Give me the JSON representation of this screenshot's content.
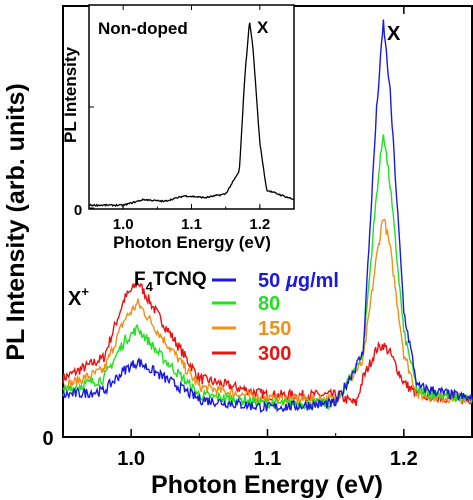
{
  "chart_data": [
    {
      "type": "line",
      "xlabel": "Photon Energy (eV)",
      "ylabel": "PL Intensity (arb. units)",
      "xlim": [
        0.95,
        1.25
      ],
      "x_ticks": [
        1.0,
        1.1,
        1.2
      ],
      "x_tick_labels": [
        "1.0",
        "1.1",
        "1.2"
      ],
      "y_ticks": [
        0
      ],
      "y_tick_labels": [
        "0"
      ],
      "ylim": [
        0,
        1.03
      ],
      "grid": false,
      "annotations": {
        "peak_x": "X",
        "peak_x_plus": "X",
        "peak_x_plus_sup": "+",
        "dopant_prefix": "F",
        "dopant_sub": "4",
        "dopant_suffix": "TCNQ"
      },
      "series": [
        {
          "name": "50 μg/ml",
          "color": "#1a1adc",
          "points": [
            [
              0.95,
              0.1
            ],
            [
              0.98,
              0.11
            ],
            [
              0.995,
              0.16
            ],
            [
              1.005,
              0.18
            ],
            [
              1.02,
              0.15
            ],
            [
              1.05,
              0.09
            ],
            [
              1.1,
              0.07
            ],
            [
              1.15,
              0.08
            ],
            [
              1.17,
              0.2
            ],
            [
              1.18,
              0.78
            ],
            [
              1.185,
              0.99
            ],
            [
              1.19,
              0.82
            ],
            [
              1.2,
              0.3
            ],
            [
              1.21,
              0.12
            ],
            [
              1.25,
              0.09
            ]
          ]
        },
        {
          "name": "80",
          "color": "#22e022",
          "points": [
            [
              0.95,
              0.11
            ],
            [
              0.98,
              0.14
            ],
            [
              0.995,
              0.23
            ],
            [
              1.005,
              0.26
            ],
            [
              1.02,
              0.2
            ],
            [
              1.05,
              0.1
            ],
            [
              1.1,
              0.08
            ],
            [
              1.15,
              0.08
            ],
            [
              1.17,
              0.2
            ],
            [
              1.18,
              0.58
            ],
            [
              1.185,
              0.73
            ],
            [
              1.19,
              0.6
            ],
            [
              1.2,
              0.25
            ],
            [
              1.21,
              0.11
            ],
            [
              1.25,
              0.09
            ]
          ]
        },
        {
          "name": "150",
          "color": "#f0901c",
          "points": [
            [
              0.95,
              0.12
            ],
            [
              0.98,
              0.16
            ],
            [
              0.995,
              0.28
            ],
            [
              1.005,
              0.32
            ],
            [
              1.02,
              0.25
            ],
            [
              1.05,
              0.12
            ],
            [
              1.1,
              0.09
            ],
            [
              1.15,
              0.09
            ],
            [
              1.17,
              0.18
            ],
            [
              1.18,
              0.43
            ],
            [
              1.185,
              0.53
            ],
            [
              1.19,
              0.45
            ],
            [
              1.2,
              0.2
            ],
            [
              1.21,
              0.1
            ],
            [
              1.25,
              0.09
            ]
          ]
        },
        {
          "name": "300",
          "color": "#e81414",
          "points": [
            [
              0.95,
              0.14
            ],
            [
              0.98,
              0.19
            ],
            [
              0.995,
              0.33
            ],
            [
              1.005,
              0.37
            ],
            [
              1.02,
              0.29
            ],
            [
              1.05,
              0.14
            ],
            [
              1.1,
              0.1
            ],
            [
              1.15,
              0.1
            ],
            [
              1.165,
              0.08
            ],
            [
              1.17,
              0.14
            ],
            [
              1.18,
              0.21
            ],
            [
              1.185,
              0.22
            ],
            [
              1.19,
              0.2
            ],
            [
              1.2,
              0.13
            ],
            [
              1.21,
              0.1
            ],
            [
              1.25,
              0.09
            ]
          ]
        }
      ],
      "legend": {
        "placement": "left-center",
        "unit_mu": "μ",
        "unit_rest": "g/ml"
      }
    },
    {
      "type": "line",
      "title": "Non-doped",
      "xlabel": "Photon Energy (eV)",
      "ylabel": "PL Intensity",
      "xlim": [
        0.95,
        1.25
      ],
      "x_ticks": [
        1.0,
        1.1,
        1.2
      ],
      "x_tick_labels": [
        "1.0",
        "1.1",
        "1.2"
      ],
      "y_ticks": [
        0
      ],
      "y_tick_labels": [
        "0"
      ],
      "ylim": [
        0,
        1.08
      ],
      "annotations": {
        "peak_x": "X"
      },
      "series": [
        {
          "name": "",
          "color": "#000000",
          "points": [
            [
              0.95,
              0.02
            ],
            [
              1.0,
              0.02
            ],
            [
              1.03,
              0.05
            ],
            [
              1.06,
              0.04
            ],
            [
              1.09,
              0.07
            ],
            [
              1.12,
              0.06
            ],
            [
              1.15,
              0.08
            ],
            [
              1.17,
              0.2
            ],
            [
              1.178,
              0.7
            ],
            [
              1.185,
              1.0
            ],
            [
              1.19,
              0.85
            ],
            [
              1.2,
              0.35
            ],
            [
              1.21,
              0.1
            ],
            [
              1.25,
              0.05
            ]
          ]
        }
      ]
    }
  ]
}
